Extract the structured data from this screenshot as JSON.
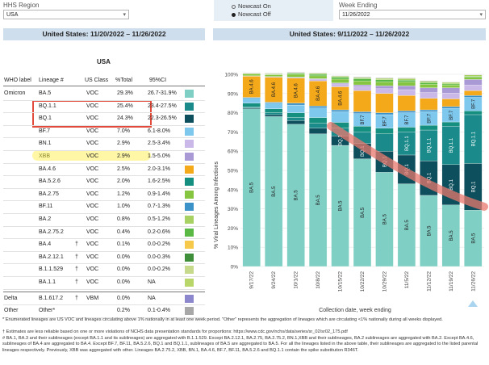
{
  "filters": {
    "region_label": "HHS Region",
    "region_value": "USA",
    "nowcast_on": "Nowcast On",
    "nowcast_off": "Nowcast Off",
    "week_label": "Week Ending",
    "week_value": "11/26/2022"
  },
  "left_banner": "United States: 11/20/2022 – 11/26/2022",
  "right_banner": "United States: 9/11/2022 – 11/26/2022",
  "table": {
    "region": "USA",
    "headers": {
      "who": "WHO label",
      "lineage": "Lineage #",
      "us_class": "US Class",
      "pct": "%Total",
      "ci": "95%CI"
    },
    "rows": [
      {
        "who": "Omicron",
        "lineage": "BA.5",
        "dagger": "",
        "cls": "VOC",
        "pct": "29.3%",
        "ci": "26.7-31.9%",
        "color": "#7fcfc4"
      },
      {
        "who": "",
        "lineage": "BQ.1.1",
        "dagger": "",
        "cls": "VOC",
        "pct": "25.4%",
        "ci": "23.4-27.5%",
        "color": "#1a8a8a"
      },
      {
        "who": "",
        "lineage": "BQ.1",
        "dagger": "",
        "cls": "VOC",
        "pct": "24.3%",
        "ci": "22.3-26.5%",
        "color": "#0d4f5c"
      },
      {
        "who": "",
        "lineage": "BF.7",
        "dagger": "",
        "cls": "VOC",
        "pct": "7.0%",
        "ci": "6.1-8.0%",
        "color": "#7ec8ee"
      },
      {
        "who": "",
        "lineage": "BN.1",
        "dagger": "",
        "cls": "VOC",
        "pct": "2.9%",
        "ci": "2.5-3.4%",
        "color": "#c9b8e8"
      },
      {
        "who": "",
        "lineage": "XBB",
        "dagger": "",
        "cls": "VOC",
        "pct": "2.9%",
        "ci": "1.5-5.0%",
        "color": "#a99ad6"
      },
      {
        "who": "",
        "lineage": "BA.4.6",
        "dagger": "",
        "cls": "VOC",
        "pct": "2.5%",
        "ci": "2.0-3.1%",
        "color": "#f4a91b"
      },
      {
        "who": "",
        "lineage": "BA.5.2.6",
        "dagger": "",
        "cls": "VOC",
        "pct": "2.0%",
        "ci": "1.6-2.5%",
        "color": "#158f7f"
      },
      {
        "who": "",
        "lineage": "BA.2.75",
        "dagger": "",
        "cls": "VOC",
        "pct": "1.2%",
        "ci": "0.9-1.4%",
        "color": "#86c540"
      },
      {
        "who": "",
        "lineage": "BF.11",
        "dagger": "",
        "cls": "VOC",
        "pct": "1.0%",
        "ci": "0.7-1.3%",
        "color": "#3a92c9"
      },
      {
        "who": "",
        "lineage": "BA.2",
        "dagger": "",
        "cls": "VOC",
        "pct": "0.8%",
        "ci": "0.5-1.2%",
        "color": "#a7d162"
      },
      {
        "who": "",
        "lineage": "BA.2.75.2",
        "dagger": "",
        "cls": "VOC",
        "pct": "0.4%",
        "ci": "0.2-0.6%",
        "color": "#5ab845"
      },
      {
        "who": "",
        "lineage": "BA.4",
        "dagger": "†",
        "cls": "VOC",
        "pct": "0.1%",
        "ci": "0.0-0.2%",
        "color": "#f7c94a"
      },
      {
        "who": "",
        "lineage": "BA.2.12.1",
        "dagger": "†",
        "cls": "VOC",
        "pct": "0.0%",
        "ci": "0.0-0.3%",
        "color": "#3f8f3a"
      },
      {
        "who": "",
        "lineage": "B.1.1.529",
        "dagger": "†",
        "cls": "VOC",
        "pct": "0.0%",
        "ci": "0.0-0.2%",
        "color": "#c7d98b"
      },
      {
        "who": "",
        "lineage": "BA.1.1",
        "dagger": "†",
        "cls": "VOC",
        "pct": "0.0%",
        "ci": "NA",
        "color": "#b8d66a"
      },
      {
        "who": "Delta",
        "lineage": "B.1.617.2",
        "dagger": "†",
        "cls": "VBM",
        "pct": "0.0%",
        "ci": "NA",
        "color": "#8c86cc"
      },
      {
        "who": "Other",
        "lineage": "Other*",
        "dagger": "",
        "cls": "",
        "pct": "0.2%",
        "ci": "0.1-0.4%",
        "color": "#a8a8a8"
      }
    ]
  },
  "chart_data": {
    "type": "bar",
    "stacked": true,
    "ylabel": "% Viral Lineages Among Infections",
    "xlabel": "Collection date, week ending",
    "ylim": [
      0,
      100
    ],
    "yticks": [
      "0%",
      "10%",
      "20%",
      "30%",
      "40%",
      "50%",
      "60%",
      "70%",
      "80%",
      "90%",
      "100%"
    ],
    "categories": [
      "9/17/22",
      "9/24/22",
      "10/1/22",
      "10/8/22",
      "10/15/22",
      "10/22/22",
      "10/29/22",
      "11/5/22",
      "11/12/22",
      "11/19/22",
      "11/26/22"
    ],
    "series": [
      {
        "name": "BA.5",
        "color": "#7fcfc4",
        "values": [
          82,
          78,
          74,
          69,
          63,
          56,
          49,
          43,
          37,
          32,
          29.3
        ]
      },
      {
        "name": "BQ.1",
        "color": "#0d4f5c",
        "values": [
          0.5,
          1,
          2,
          3,
          5,
          8,
          11,
          15,
          18,
          21,
          24.3
        ]
      },
      {
        "name": "BQ.1.1",
        "color": "#1a8a8a",
        "values": [
          0.5,
          1,
          1.5,
          2.5,
          4,
          6,
          9,
          12,
          16,
          20,
          25.4
        ]
      },
      {
        "name": "BA.5.2.6",
        "color": "#158f7f",
        "values": [
          2,
          2,
          2.5,
          3,
          3,
          3,
          3,
          2.5,
          2.5,
          2.2,
          2.0
        ]
      },
      {
        "name": "BF.7",
        "color": "#7ec8ee",
        "values": [
          2.5,
          3,
          4,
          5,
          5.5,
          6.5,
          7,
          7.5,
          7,
          7,
          7.0
        ]
      },
      {
        "name": "BF.11",
        "color": "#3a92c9",
        "values": [
          0.5,
          0.5,
          1,
          1,
          1,
          1,
          1,
          1,
          1,
          1,
          1.0
        ]
      },
      {
        "name": "BA.4.6",
        "color": "#f4a91b",
        "values": [
          11,
          13,
          13,
          13,
          12,
          11,
          10,
          8,
          6,
          4,
          2.5
        ]
      },
      {
        "name": "BN.1",
        "color": "#c9b8e8",
        "values": [
          0.2,
          0.3,
          0.5,
          1,
          1.5,
          2,
          2.5,
          3,
          3,
          3,
          2.9
        ]
      },
      {
        "name": "XBB",
        "color": "#a99ad6",
        "values": [
          0,
          0,
          0,
          0.2,
          0.5,
          1,
          1.5,
          2,
          2.5,
          2.8,
          2.9
        ]
      },
      {
        "name": "BA.2.75",
        "color": "#86c540",
        "values": [
          1,
          1,
          1.5,
          1.5,
          2,
          2,
          2,
          2,
          1.8,
          1.5,
          1.2
        ]
      },
      {
        "name": "BA.2.75.2",
        "color": "#5ab845",
        "values": [
          0,
          0.2,
          0.5,
          0.8,
          1,
          1.2,
          1.2,
          1,
          0.8,
          0.5,
          0.4
        ]
      },
      {
        "name": "BA.2",
        "color": "#a7d162",
        "values": [
          0.3,
          0.3,
          0.3,
          0.5,
          0.5,
          0.6,
          0.7,
          0.8,
          0.8,
          0.8,
          0.8
        ]
      },
      {
        "name": "Other",
        "color": "#a8a8a8",
        "values": [
          0.3,
          0.3,
          0.3,
          0.3,
          0.3,
          0.3,
          0.3,
          0.3,
          0.3,
          0.2,
          0.2
        ]
      }
    ],
    "bar_labels": [
      [
        "BA.5",
        "BA.4.6"
      ],
      [
        "BA.5",
        "BA.4.6"
      ],
      [
        "BA.5",
        "BA.4.6"
      ],
      [
        "BA.5",
        "BA.4.6"
      ],
      [
        "BA.5",
        "BA.4.6",
        "BQ.1"
      ],
      [
        "BA.5",
        "BF.7",
        "BQ.1"
      ],
      [
        "BA.5",
        "BF.7",
        "BQ.1"
      ],
      [
        "BA.5",
        "BF.7",
        "BQ.1",
        "BQ.1.1"
      ],
      [
        "BA.5",
        "BF.7",
        "BQ.1",
        "BQ.1.1"
      ],
      [
        "BA.5",
        "BF.7",
        "BQ.1",
        "BQ.1.1"
      ],
      [
        "BA.5",
        "BF.7",
        "BQ.1",
        "BQ.1.1"
      ]
    ]
  },
  "footnotes": [
    "*     Enumerated lineages are US VOC and lineages circulating above 1% nationally in at least one week period. \"Other\" represents the aggregation of lineages which are circulating <1% nationally during all weeks displayed.",
    "†     Estimates are less reliable based on one or more violations of NCHS data presentation standards for proportions: https://www.cdc.gov/nchs/data/series/sr_02/sr02_175.pdf",
    "#     BA.1, BA.3 and their sublineages (except BA.1.1 and its sublineages) are aggregated with B.1.1.529. Except BA.2.12.1, BA.2.75, BA.2.75.2, BN.1,XBB and their sublineages, BA.2 sublineages are aggregated with BA.2. Except BA.4.6, sublineages of BA.4 are aggregated to BA.4. Except BF.7, BF.11, BA.5.2.6, BQ.1 and BQ.1.1, sublineages of BA.5 are aggregated to BA.5. For all the lineages listed in the above table, their sublineages are aggregated to the listed parental lineages respectively. Previously, XBB was aggregated with other. Lineages BA.2.75.2, XBB, BN.1, BA.4.6, BF.7, BF.11, BA.5.2.6 and BQ.1.1 contain the spike substitution R346T."
  ]
}
